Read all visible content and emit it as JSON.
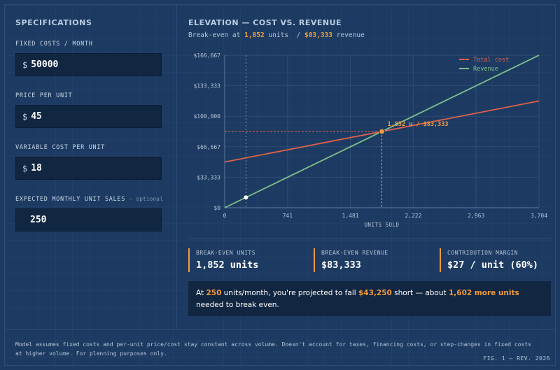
{
  "specs": {
    "title": "SPECIFICATIONS",
    "fixed_costs": {
      "label": "FIXED COSTS / MONTH",
      "currency": "$",
      "value": "50000"
    },
    "price": {
      "label": "PRICE PER UNIT",
      "currency": "$",
      "value": "45"
    },
    "variable_cost": {
      "label": "VARIABLE COST PER UNIT",
      "currency": "$",
      "value": "18"
    },
    "unit_sales": {
      "label": "EXPECTED MONTHLY UNIT SALES",
      "optional": "— optional",
      "value": "250"
    }
  },
  "chart_header": {
    "title": "ELEVATION — COST VS. REVENUE",
    "sub_prefix": "Break-even at",
    "sub_units": "1,852",
    "sub_units_word": "units",
    "sub_slash": "/",
    "sub_revenue": "$83,333",
    "sub_revenue_word": "revenue"
  },
  "chart_data": {
    "type": "line",
    "xlabel": "UNITS SOLD",
    "ylabel": "",
    "xlim": [
      0,
      3704
    ],
    "ylim": [
      0,
      166667
    ],
    "x_ticks": [
      "0",
      "741",
      "1,481",
      "2,222",
      "2,963",
      "3,704"
    ],
    "y_ticks": [
      "$0",
      "$33,333",
      "$66,667",
      "$100,000",
      "$133,333",
      "$166,667"
    ],
    "grid": true,
    "legend_position": "top-right",
    "series": [
      {
        "name": "Total cost",
        "color": "#e0604b",
        "points": [
          [
            0,
            50000
          ],
          [
            3704,
            116672
          ]
        ]
      },
      {
        "name": "Revenue",
        "color": "#7fc08a",
        "points": [
          [
            0,
            0
          ],
          [
            3704,
            166680
          ]
        ]
      }
    ],
    "break_even": {
      "x": 1852,
      "y": 83333,
      "label": "1,852 u / $83,333"
    },
    "marker": {
      "x": 250,
      "y": 11250
    },
    "expected_units_guide": 250
  },
  "stats": [
    {
      "label": "BREAK-EVEN UNITS",
      "value": "1,852 units"
    },
    {
      "label": "BREAK-EVEN REVENUE",
      "value": "$83,333"
    },
    {
      "label": "CONTRIBUTION MARGIN",
      "value": "$27 / unit (60%)"
    }
  ],
  "callout": {
    "p1": "At",
    "units": "250",
    "p2": "units/month, you're projected to fall",
    "short": "$43,250",
    "p3": "short — about",
    "more": "1,602 more units",
    "p4": "needed to break even."
  },
  "footer": {
    "note": "Model assumes fixed costs and per-unit price/cost stay constant across volume. Doesn't account for taxes, financing costs, or step-changes in fixed costs at higher volume. For planning purposes only.",
    "fig": "FIG. 1 — REV. 2026"
  },
  "colors": {
    "accent": "#f39a3d",
    "cost": "#e0604b",
    "revenue": "#7fc08a",
    "panel": "#112640"
  }
}
